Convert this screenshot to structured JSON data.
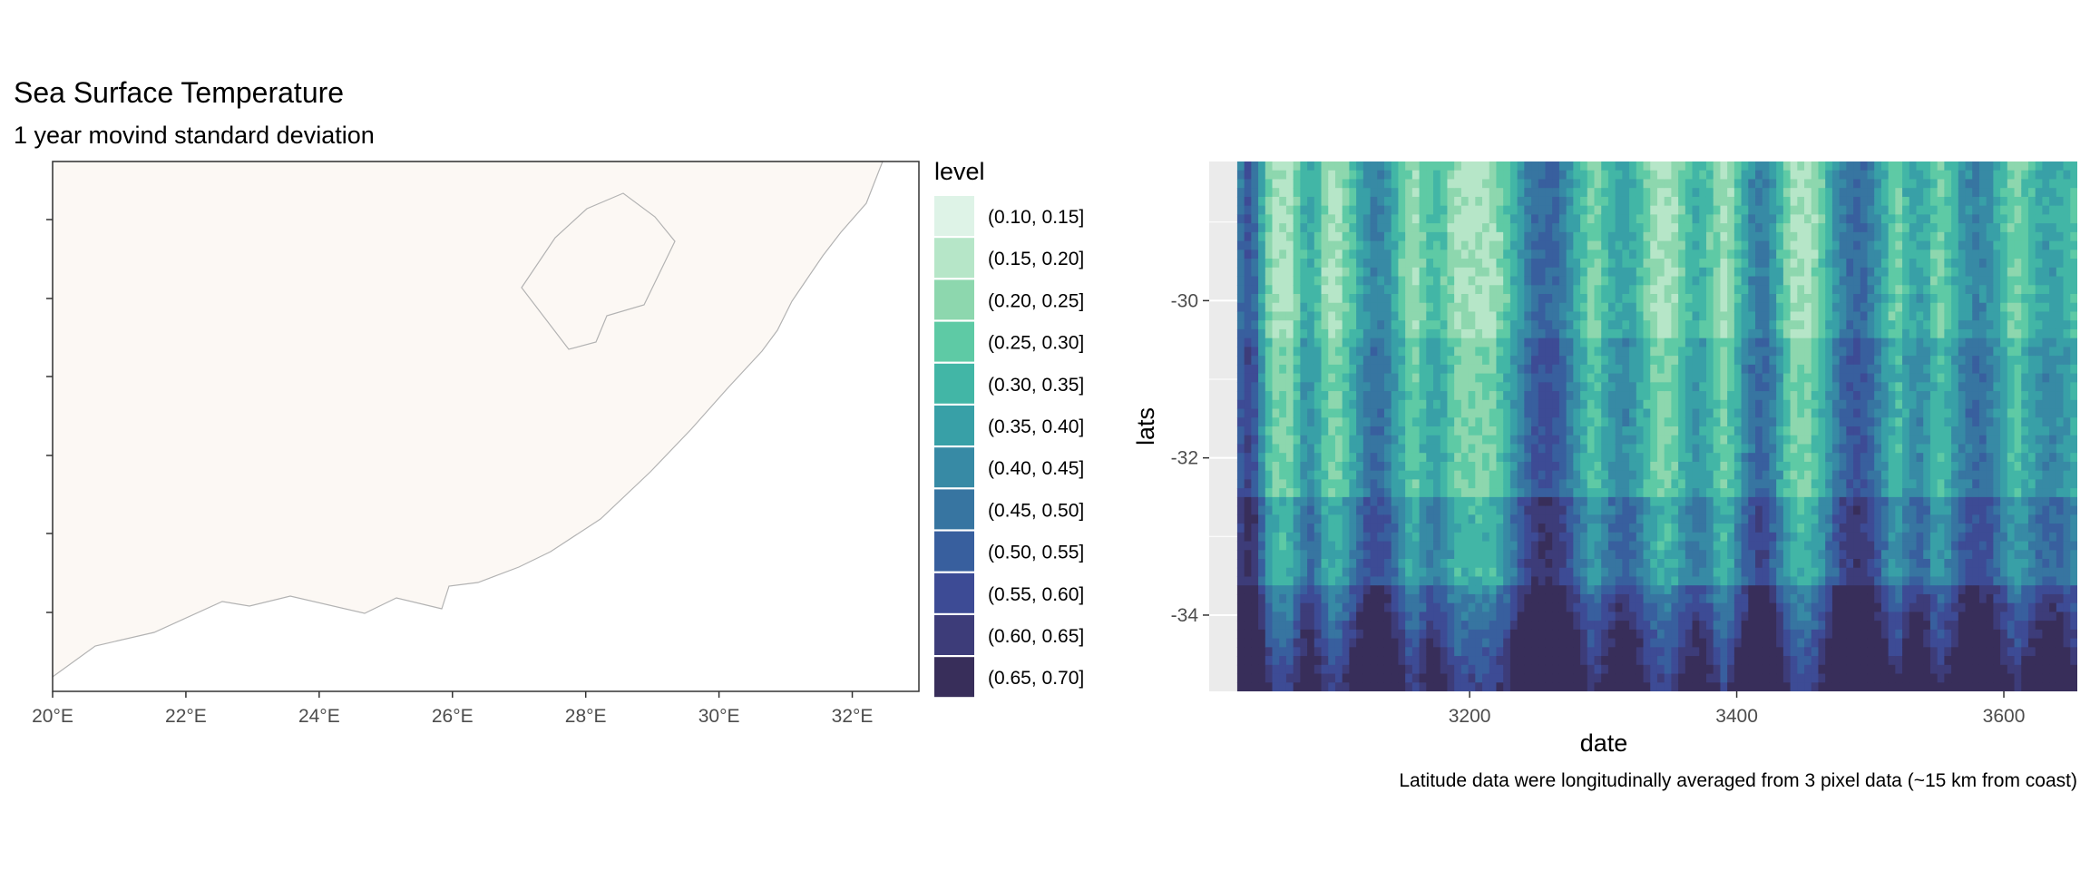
{
  "header": {
    "title": "Sea Surface Temperature",
    "subtitle": "1 year movind standard deviation"
  },
  "chart_data": [
    {
      "type": "map",
      "x_ticks": [
        "20°E",
        "22°E",
        "24°E",
        "26°E",
        "28°E",
        "30°E",
        "32°E"
      ],
      "x_tick_values": [
        20,
        22,
        24,
        26,
        28,
        30,
        32
      ],
      "xlim": [
        20,
        33
      ],
      "land_color": "#FCF8F4",
      "border_color": "#B3B3B3"
    },
    {
      "type": "heatmap",
      "xlabel": "date",
      "ylabel": "lats",
      "x_ticks": [
        "3200",
        "3400",
        "3600"
      ],
      "x_tick_values": [
        3200,
        3400,
        3600
      ],
      "y_ticks": [
        "-30",
        "-32",
        "-34"
      ],
      "y_tick_values": [
        -30,
        -32,
        -34
      ],
      "xlim": [
        3005,
        3655
      ],
      "ylim": [
        -34.97,
        -28.23
      ],
      "data_xlim": [
        3026,
        3655
      ],
      "caption": "Latitude data were longitudinally averaged from 3 pixel data (~15 km from coast)",
      "legend": {
        "title": "level",
        "items": [
          {
            "label": "(0.10, 0.15]",
            "color": "#DEF3E7"
          },
          {
            "label": "(0.15, 0.20]",
            "color": "#B6E6C8"
          },
          {
            "label": "(0.20, 0.25]",
            "color": "#8DD7AE"
          },
          {
            "label": "(0.25, 0.30]",
            "color": "#5ECAA5"
          },
          {
            "label": "(0.30, 0.35]",
            "color": "#42B6A6"
          },
          {
            "label": "(0.35, 0.40]",
            "color": "#38A0A7"
          },
          {
            "label": "(0.40, 0.45]",
            "color": "#378AA5"
          },
          {
            "label": "(0.45, 0.50]",
            "color": "#3775A1"
          },
          {
            "label": "(0.50, 0.55]",
            "color": "#385F9E"
          },
          {
            "label": "(0.55, 0.60]",
            "color": "#3D4B95"
          },
          {
            "label": "(0.60, 0.65]",
            "color": "#3D3C79"
          },
          {
            "label": "(0.65, 0.70]",
            "color": "#382E5A"
          }
        ]
      }
    }
  ]
}
